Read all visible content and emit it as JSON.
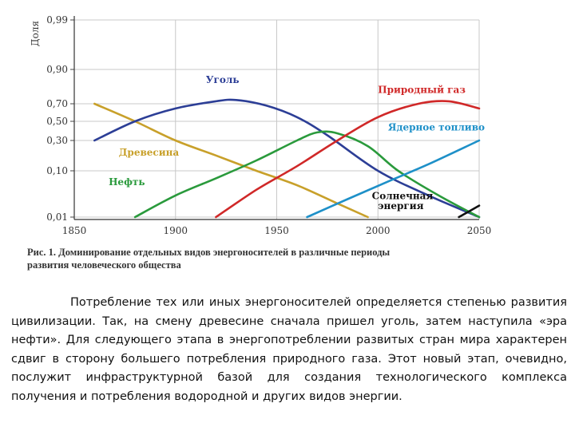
{
  "chart_data": {
    "type": "line",
    "ylabel": "Доля",
    "x_ticks": [
      1850,
      1900,
      1950,
      2000,
      2050
    ],
    "y_tick_labels": [
      "0,99",
      "0,90",
      "0,70",
      "0,50",
      "0,30",
      "0,10",
      "0,01"
    ],
    "y_tick_values": [
      0.99,
      0.9,
      0.7,
      0.5,
      0.3,
      0.1,
      0.01
    ],
    "xlim": [
      1850,
      2050
    ],
    "series": [
      {
        "name": "Древесина",
        "color": "#c8a02a",
        "x": [
          1860,
          1880,
          1900,
          1920,
          1940,
          1960,
          1980,
          1995
        ],
        "y": [
          0.7,
          0.5,
          0.3,
          0.18,
          0.1,
          0.05,
          0.02,
          0.01
        ]
      },
      {
        "name": "Уголь",
        "color": "#2c3e96",
        "x": [
          1860,
          1880,
          1900,
          1920,
          1930,
          1945,
          1960,
          1975,
          2000,
          2025,
          2050
        ],
        "y": [
          0.3,
          0.5,
          0.65,
          0.72,
          0.73,
          0.68,
          0.55,
          0.35,
          0.1,
          0.03,
          0.01
        ]
      },
      {
        "name": "Нефть",
        "color": "#2a9a3c",
        "x": [
          1880,
          1900,
          1920,
          1940,
          1960,
          1970,
          1980,
          1995,
          2010,
          2030,
          2050
        ],
        "y": [
          0.01,
          0.03,
          0.07,
          0.15,
          0.3,
          0.38,
          0.37,
          0.25,
          0.1,
          0.03,
          0.01
        ]
      },
      {
        "name": "Природный газ",
        "color": "#d02828",
        "x": [
          1920,
          1940,
          1960,
          1980,
          2000,
          2020,
          2035,
          2050
        ],
        "y": [
          0.01,
          0.04,
          0.12,
          0.3,
          0.55,
          0.7,
          0.72,
          0.65
        ]
      },
      {
        "name": "Ядерное топливо",
        "color": "#1e90c8",
        "x": [
          1965,
          1985,
          2005,
          2025,
          2050
        ],
        "y": [
          0.01,
          0.025,
          0.06,
          0.13,
          0.3
        ]
      },
      {
        "name": "Солнечная энергия",
        "color": "#101010",
        "x": [
          2040,
          2050
        ],
        "y": [
          0.01,
          0.018
        ]
      }
    ],
    "annotations": [
      {
        "text": "Уголь",
        "color": "#2c3e96",
        "x": 1915,
        "y": 0.84
      },
      {
        "text": "Природный газ",
        "color": "#d02828",
        "x": 2000,
        "y": 0.78
      },
      {
        "text": "Ядерное топливо",
        "color": "#1e90c8",
        "x": 2005,
        "y": 0.4
      },
      {
        "text": "Древесина",
        "color": "#c8a02a",
        "x": 1872,
        "y": 0.18
      },
      {
        "text": "Нефть",
        "color": "#2a9a3c",
        "x": 1867,
        "y": 0.05
      },
      {
        "text": "Солнечная",
        "color": "#101010",
        "x": 1997,
        "y": 0.025
      },
      {
        "text": "энергия",
        "color": "#101010",
        "x": 2000,
        "y": 0.015
      }
    ]
  },
  "caption": {
    "line1": "Рис. 1. Доминирование отдельных видов энергоносителей в различные периоды",
    "line2": "развития человеческого общества"
  },
  "paragraph": "Потребление тех или иных энергоносителей определяется степенью развития цивилизации. Так, на смену древесине сначала пришел уголь, затем наступила «эра нефти». Для следующего этапа в энергопотреблении развитых стран мира характерен сдвиг в сторону большего потребления природного газа. Этот новый этап, очевидно, послужит инфраструктурной базой для создания технологического комплекса получения и потребления водородной и других видов энергии."
}
